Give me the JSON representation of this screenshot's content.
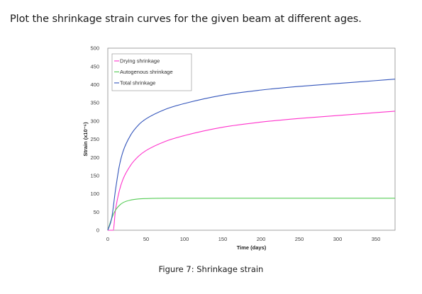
{
  "page": {
    "heading": "Plot the shrinkage strain curves for the given beam at different ages.",
    "caption": "Figure 7: Shrinkage strain"
  },
  "chart_data": {
    "type": "line",
    "title": "",
    "xlabel": "Time (days)",
    "ylabel": "Strain (x10⁻⁶)",
    "xlim": [
      0,
      375
    ],
    "ylim": [
      0,
      500
    ],
    "xticks": [
      0,
      50,
      100,
      150,
      200,
      250,
      300,
      350
    ],
    "yticks": [
      0,
      50,
      100,
      150,
      200,
      250,
      300,
      350,
      400,
      450,
      500
    ],
    "grid": false,
    "legend_position": "top-left",
    "series": [
      {
        "name": "Drying shrinkage",
        "color": "#ff33cc",
        "x": [
          0,
          7,
          10,
          15,
          20,
          30,
          40,
          50,
          75,
          100,
          150,
          200,
          250,
          300,
          350,
          375
        ],
        "y": [
          0,
          0,
          55,
          108,
          141,
          179,
          203,
          219,
          244,
          260,
          283,
          297,
          307,
          315,
          323,
          327
        ]
      },
      {
        "name": "Autogenous shrinkage",
        "color": "#55cc55",
        "x": [
          0,
          5,
          10,
          15,
          20,
          30,
          40,
          50,
          75,
          100,
          150,
          200,
          250,
          300,
          350,
          375
        ],
        "y": [
          0,
          32,
          55,
          68,
          76,
          83,
          86,
          87,
          88,
          88,
          88,
          88,
          88,
          88,
          88,
          88
        ]
      },
      {
        "name": "Total shrinkage",
        "color": "#3355bb",
        "x": [
          0,
          5,
          10,
          15,
          20,
          30,
          40,
          50,
          75,
          100,
          150,
          200,
          250,
          300,
          350,
          375
        ],
        "y": [
          0,
          32,
          110,
          176,
          217,
          262,
          289,
          306,
          332,
          348,
          371,
          385,
          395,
          403,
          411,
          415
        ]
      }
    ]
  }
}
